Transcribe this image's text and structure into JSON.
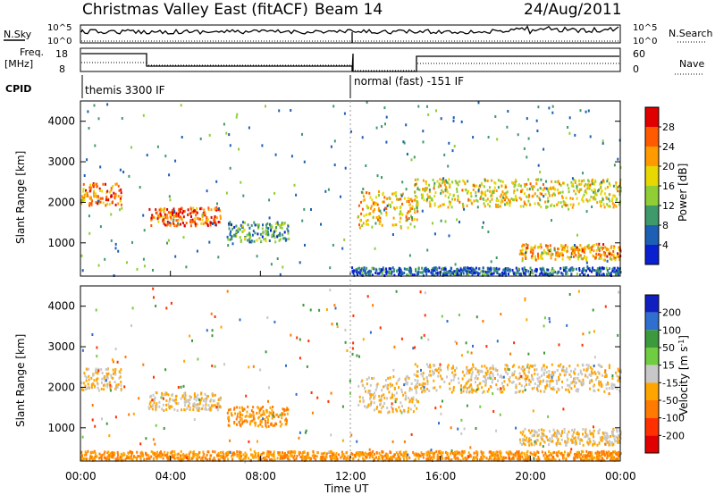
{
  "header": {
    "title": "Christmas Valley East (fitACF)",
    "beam": "Beam 14",
    "date": "24/Aug/2011"
  },
  "noise_panel": {
    "left_label": "N.Sky",
    "right_label": "N.Search",
    "left_ticks": [
      "10^5",
      "10^0"
    ],
    "right_ticks": [
      "10^5",
      "10^0"
    ]
  },
  "freq_panel": {
    "left_label_line1": "Freq.",
    "left_label_line2": "[MHz]",
    "right_label": "Nave",
    "left_ticks": [
      "18",
      "8"
    ],
    "right_ticks": [
      "60",
      "0"
    ]
  },
  "cpid": {
    "label": "CPID",
    "segments": [
      {
        "text": "themis 3300 IF",
        "start_hour": 0
      },
      {
        "text": "normal (fast) -151 IF",
        "start_hour": 12
      }
    ]
  },
  "x_axis": {
    "title": "Time UT",
    "ticks": [
      "00:00",
      "04:00",
      "08:00",
      "12:00",
      "16:00",
      "20:00",
      "00:00"
    ]
  },
  "chart_data": [
    {
      "type": "heatmap",
      "name": "Power",
      "ylabel": "Slant Range [km]",
      "yticks": [
        "1000",
        "2000",
        "3000",
        "4000"
      ],
      "ylim": [
        180,
        4500
      ],
      "xlim": [
        0,
        24
      ],
      "colorbar": {
        "title": "Power [dB]",
        "labels": [
          "28",
          "24",
          "20",
          "16",
          "12",
          "8",
          "4"
        ],
        "colors": [
          "#e00000",
          "#ff5a00",
          "#ff9a00",
          "#e6d800",
          "#8fce34",
          "#3e9a6a",
          "#1c5fb5",
          "#0a1fd0"
        ]
      },
      "echo_bands": [
        {
          "t0": 0.0,
          "t1": 1.8,
          "r0": 1950,
          "r1": 2500,
          "level": 24
        },
        {
          "t0": 3.0,
          "t1": 6.2,
          "r0": 1450,
          "r1": 1900,
          "level": 26
        },
        {
          "t0": 6.5,
          "t1": 9.2,
          "r0": 1050,
          "r1": 1550,
          "level": 10
        },
        {
          "t0": 12.3,
          "t1": 15.0,
          "r0": 1400,
          "r1": 2300,
          "level": 20
        },
        {
          "t0": 14.8,
          "t1": 24.0,
          "r0": 1900,
          "r1": 2600,
          "level": 18
        },
        {
          "t0": 19.5,
          "t1": 24.0,
          "r0": 600,
          "r1": 1000,
          "level": 22
        },
        {
          "t0": 12.0,
          "t1": 24.0,
          "r0": 180,
          "r1": 420,
          "level": 6
        }
      ]
    },
    {
      "type": "heatmap",
      "name": "Velocity",
      "ylabel": "Slant Range [km]",
      "yticks": [
        "1000",
        "2000",
        "3000",
        "4000"
      ],
      "ylim": [
        180,
        4500
      ],
      "xlim": [
        0,
        24
      ],
      "colorbar": {
        "title": "Velocity [m s^-1]",
        "labels": [
          "200",
          "100",
          "50",
          "15",
          "-15",
          "-50",
          "-100",
          "-200"
        ],
        "colors": [
          "#1020c0",
          "#2f6fd0",
          "#3c9a3c",
          "#70cc40",
          "#c8c8c8",
          "#ffa500",
          "#ff7a00",
          "#ff3000",
          "#e00000"
        ]
      },
      "echo_bands": [
        {
          "t0": 0.0,
          "t1": 1.8,
          "r0": 1950,
          "r1": 2500,
          "level": -15
        },
        {
          "t0": 3.0,
          "t1": 6.2,
          "r0": 1450,
          "r1": 1900,
          "level": -15
        },
        {
          "t0": 6.5,
          "t1": 9.2,
          "r0": 1050,
          "r1": 1550,
          "level": -50
        },
        {
          "t0": 12.3,
          "t1": 15.0,
          "r0": 1400,
          "r1": 2300,
          "level": -15
        },
        {
          "t0": 14.8,
          "t1": 24.0,
          "r0": 1900,
          "r1": 2600,
          "level": -15
        },
        {
          "t0": 19.5,
          "t1": 24.0,
          "r0": 600,
          "r1": 1000,
          "level": -15
        },
        {
          "t0": 0.0,
          "t1": 24.0,
          "r0": 180,
          "r1": 450,
          "level": -50
        }
      ]
    }
  ]
}
